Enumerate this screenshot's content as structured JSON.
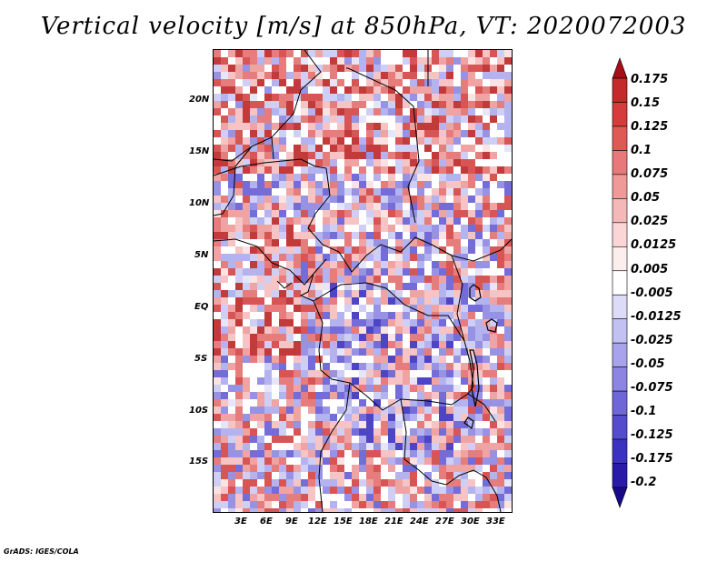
{
  "title": "Vertical velocity [m/s] at 850hPa, VT: 2020072003",
  "credit": "GrADS: IGES/COLA",
  "map": {
    "region": "Central Africa",
    "lat_labels": [
      "20N",
      "15N",
      "10N",
      "5N",
      "EQ",
      "5S",
      "10S",
      "15S"
    ],
    "lon_labels": [
      "3E",
      "6E",
      "9E",
      "12E",
      "15E",
      "18E",
      "21E",
      "24E",
      "27E",
      "30E",
      "33E"
    ],
    "colors": {
      "positive_max": "#b2182b",
      "negative_max": "#3b1fa8",
      "neutral": "#ffffff"
    }
  },
  "colorbar": {
    "labels": [
      "0.175",
      "0.15",
      "0.125",
      "0.1",
      "0.075",
      "0.05",
      "0.025",
      "0.0125",
      "0.005",
      "-0.005",
      "-0.0125",
      "-0.025",
      "-0.05",
      "-0.075",
      "-0.1",
      "-0.125",
      "-0.175",
      "-0.2"
    ],
    "colors": [
      "#a50f15",
      "#c42a2a",
      "#d73c3c",
      "#e05a55",
      "#e8797a",
      "#ef9999",
      "#f5b8b8",
      "#fad6d6",
      "#fdeeee",
      "#ffffff",
      "#dcdcf8",
      "#c2c2f2",
      "#a8a4ec",
      "#8c85e2",
      "#6f66d8",
      "#554ccd",
      "#3c32c0",
      "#2a1aa8",
      "#1a0a8a"
    ]
  }
}
